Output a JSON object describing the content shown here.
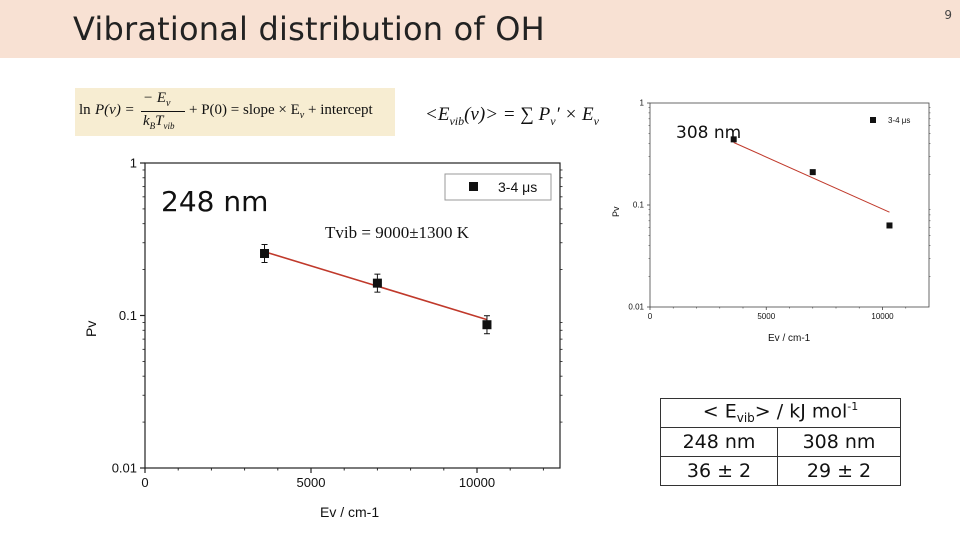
{
  "slide": {
    "title": "Vibrational distribution of OH",
    "page_number": "9"
  },
  "equations": {
    "boltzmann": "ln P(v) = −E_v / (k_B T_vib) + P(0) = slope × E_v + intercept",
    "boltzmann_ln": "ln",
    "boltzmann_pv": "P(v) =",
    "boltzmann_num": "− E",
    "boltzmann_den": "k",
    "boltzmann_rest": "+ P(0) = slope × E",
    "boltzmann_tail": "+ intercept",
    "avg_energy": "<E_vib(v)> = Σ P_v′ × E_v",
    "avg_lhs": "<E",
    "avg_mid": "(v)> = ∑ P",
    "avg_rhs": "′ × E"
  },
  "table": {
    "header": "< E",
    "header_sub": "vib",
    "header_rest": "> / kJ mol",
    "header_sup": "-1",
    "col1": "248 nm",
    "col2": "308 nm",
    "val1": "36 ± 2",
    "val2": "29 ± 2"
  },
  "chart_data": [
    {
      "type": "scatter",
      "title": "248 nm",
      "xlabel": "Ev / cm-1",
      "ylabel": "Pv",
      "xlim": [
        0,
        12500
      ],
      "ylim": [
        0.01,
        1
      ],
      "yscale": "log",
      "x_ticks": [
        "0",
        "5000",
        "10000"
      ],
      "y_ticks": [
        "0.01",
        "0.1",
        "1"
      ],
      "legend": "3-4 μs",
      "legend_position": "top-right",
      "annotation": "Tvib = 9000±1300 K",
      "series": [
        {
          "name": "3-4 μs",
          "x": [
            3600,
            7000,
            10300
          ],
          "y": [
            0.255,
            0.163,
            0.087
          ]
        }
      ],
      "fit": {
        "x": [
          3600,
          10300
        ],
        "y": [
          0.262,
          0.094
        ]
      }
    },
    {
      "type": "scatter",
      "title": "308 nm",
      "xlabel": "Ev / cm-1",
      "ylabel": "Pv",
      "xlim": [
        0,
        12000
      ],
      "ylim": [
        0.01,
        1
      ],
      "yscale": "log",
      "x_ticks": [
        "0",
        "5000",
        "10000"
      ],
      "y_ticks": [
        "0.01",
        "0.1",
        "1"
      ],
      "legend": "3-4 μs",
      "legend_position": "top-right",
      "series": [
        {
          "name": "3-4 μs",
          "x": [
            3600,
            7000,
            10300
          ],
          "y": [
            0.44,
            0.21,
            0.063
          ]
        }
      ],
      "fit": {
        "x": [
          3600,
          10300
        ],
        "y": [
          0.41,
          0.085
        ]
      }
    }
  ]
}
